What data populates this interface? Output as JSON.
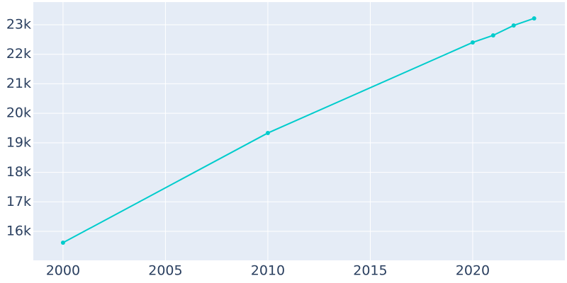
{
  "chart_data": {
    "type": "line",
    "x": [
      2000,
      2010,
      2020,
      2021,
      2022,
      2023
    ],
    "series": [
      {
        "color": "#00cccc",
        "values": [
          15616,
          19333,
          22401,
          22641,
          22977,
          23216
        ]
      }
    ],
    "xlim": [
      1998.55,
      2024.5
    ],
    "xticks": [
      2000,
      2005,
      2010,
      2015,
      2020
    ],
    "ylim": [
      15017,
      23767
    ],
    "yticks": [
      {
        "value": 16000,
        "label": "16k"
      },
      {
        "value": 17000,
        "label": "17k"
      },
      {
        "value": 18000,
        "label": "18k"
      },
      {
        "value": 19000,
        "label": "19k"
      },
      {
        "value": 20000,
        "label": "20k"
      },
      {
        "value": 21000,
        "label": "21k"
      },
      {
        "value": 22000,
        "label": "22k"
      },
      {
        "value": 23000,
        "label": "23k"
      }
    ],
    "grid": true
  }
}
